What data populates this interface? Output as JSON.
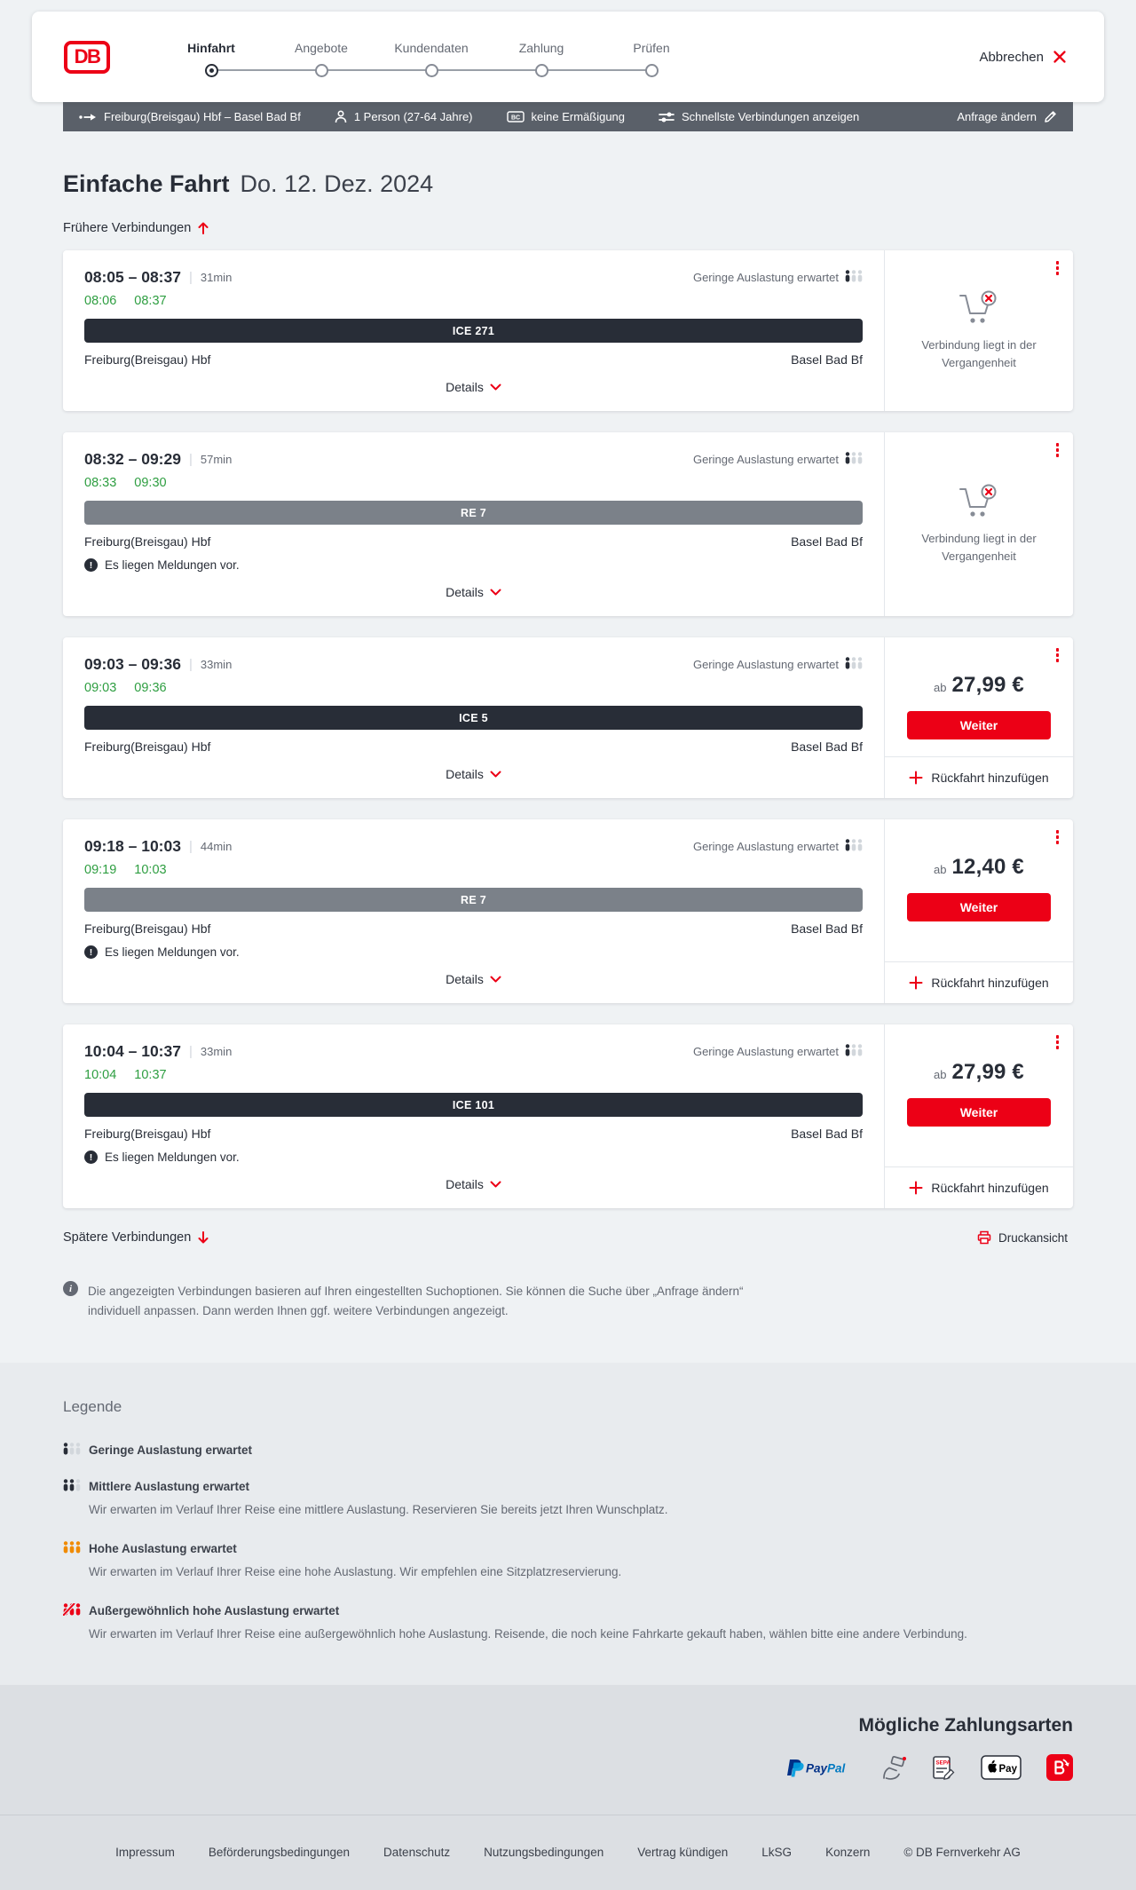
{
  "header": {
    "logo_text": "DB",
    "steps": [
      {
        "label": "Hinfahrt",
        "active": true
      },
      {
        "label": "Angebote",
        "active": false
      },
      {
        "label": "Kundendaten",
        "active": false
      },
      {
        "label": "Zahlung",
        "active": false
      },
      {
        "label": "Prüfen",
        "active": false
      }
    ],
    "cancel_label": "Abbrechen"
  },
  "querybar": {
    "route": "Freiburg(Breisgau) Hbf – Basel Bad Bf",
    "passengers": "1 Person (27-64 Jahre)",
    "discount": "keine Ermäßigung",
    "fastest_label": "Schnellste Verbindungen anzeigen",
    "modify_label": "Anfrage ändern"
  },
  "main": {
    "trip_type": "Einfache Fahrt",
    "date": "Do. 12. Dez. 2024",
    "earlier_label": "Frühere Verbindungen",
    "later_label": "Spätere Verbindungen",
    "print_label": "Druckansicht",
    "details_label": "Details",
    "occupancy_label": "Geringe Auslastung erwartet",
    "warning_label": "Es liegen Meldungen vor.",
    "past_label": "Verbindung liegt in der Vergangenheit",
    "price_prefix": "ab",
    "continue_label": "Weiter",
    "return_label": "Rückfahrt hinzufügen",
    "note": "Die angezeigten Verbindungen basieren auf Ihren eingestellten Suchoptionen. Sie können die Suche über „Anfrage ändern“ individuell anpassen. Dann werden Ihnen ggf. weitere Verbindungen angezeigt.",
    "connections": [
      {
        "times": "08:05 – 08:37",
        "duration": "31min",
        "dep_rt": "08:06",
        "arr_rt": "08:37",
        "train": "ICE 271",
        "train_type": "ice",
        "from": "Freiburg(Breisgau) Hbf",
        "to": "Basel Bad Bf",
        "warning": false,
        "past": true,
        "price": null
      },
      {
        "times": "08:32 – 09:29",
        "duration": "57min",
        "dep_rt": "08:33",
        "arr_rt": "09:30",
        "train": "RE 7",
        "train_type": "re",
        "from": "Freiburg(Breisgau) Hbf",
        "to": "Basel Bad Bf",
        "warning": true,
        "past": true,
        "price": null
      },
      {
        "times": "09:03 – 09:36",
        "duration": "33min",
        "dep_rt": "09:03",
        "arr_rt": "09:36",
        "train": "ICE 5",
        "train_type": "ice",
        "from": "Freiburg(Breisgau) Hbf",
        "to": "Basel Bad Bf",
        "warning": false,
        "past": false,
        "price": "27,99 €"
      },
      {
        "times": "09:18 – 10:03",
        "duration": "44min",
        "dep_rt": "09:19",
        "arr_rt": "10:03",
        "train": "RE 7",
        "train_type": "re",
        "from": "Freiburg(Breisgau) Hbf",
        "to": "Basel Bad Bf",
        "warning": true,
        "past": false,
        "price": "12,40 €"
      },
      {
        "times": "10:04 – 10:37",
        "duration": "33min",
        "dep_rt": "10:04",
        "arr_rt": "10:37",
        "train": "ICE 101",
        "train_type": "ice",
        "from": "Freiburg(Breisgau) Hbf",
        "to": "Basel Bad Bf",
        "warning": true,
        "past": false,
        "price": "27,99 €"
      }
    ]
  },
  "legend": {
    "title": "Legende",
    "items": [
      {
        "level": "low",
        "label": "Geringe Auslastung erwartet",
        "desc": ""
      },
      {
        "level": "medium",
        "label": "Mittlere Auslastung erwartet",
        "desc": "Wir erwarten im Verlauf Ihrer Reise eine mittlere Auslastung. Reservieren Sie bereits jetzt Ihren Wunschplatz."
      },
      {
        "level": "high",
        "label": "Hohe Auslastung erwartet",
        "desc": "Wir erwarten im Verlauf Ihrer Reise eine hohe Auslastung. Wir empfehlen eine Sitzplatzreservierung."
      },
      {
        "level": "very-high",
        "label": "Außergewöhnlich hohe Auslastung erwartet",
        "desc": "Wir erwarten im Verlauf Ihrer Reise eine außergewöhnlich hohe Auslastung. Reisende, die noch keine Fahrkarte gekauft haben, wählen bitte eine andere Verbindung."
      }
    ]
  },
  "payments": {
    "title": "Mögliche Zahlungsarten",
    "paypal_brand_1": "Pay",
    "paypal_brand_2": "Pal",
    "sepa_label": "SEPA",
    "applepay_label": "Pay",
    "methods": [
      "PayPal",
      "Kreditkarte",
      "SEPA-Lastschrift",
      "Apple Pay",
      "BahnBonus"
    ]
  },
  "footer": {
    "links": [
      "Impressum",
      "Beförderungsbedingungen",
      "Datenschutz",
      "Nutzungsbedingungen",
      "Vertrag kündigen",
      "LkSG",
      "Konzern"
    ],
    "copyright": "© DB Fernverkehr AG"
  },
  "colors": {
    "brand_red": "#ec0016",
    "dark": "#282d37",
    "gray": "#646973",
    "green_realtime": "#2e9e41",
    "bar_dark": "#5a6069",
    "re_gray": "#7b8189",
    "occupancy_orange": "#f08a00"
  }
}
